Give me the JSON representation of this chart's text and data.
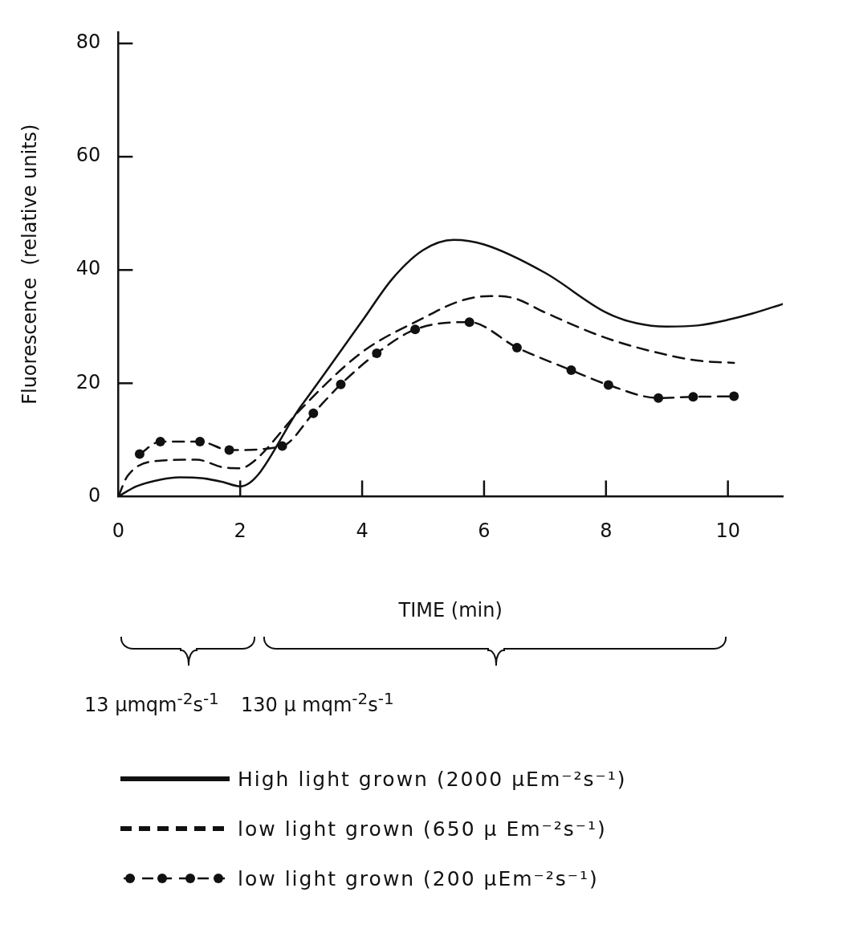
{
  "chart_data": {
    "type": "line",
    "xlabel": "TIME (min)",
    "ylabel": "Fluorescence  (relative units)",
    "xlim": [
      0,
      10.9
    ],
    "xticks": [
      0,
      2,
      4,
      6,
      8,
      10
    ],
    "ylim": [
      0,
      82
    ],
    "yticks": [
      0,
      20,
      40,
      60,
      80
    ],
    "grid": false,
    "legend": "bottom",
    "series": [
      {
        "name": "High light grown (2000 µEm⁻²s⁻¹)",
        "color": "#111111",
        "line_style": "solid",
        "marker": "none",
        "x": [
          0,
          0.3,
          0.7,
          1,
          1.4,
          1.7,
          2,
          3,
          4,
          4.5,
          5,
          5.5,
          6,
          7,
          8,
          8.5,
          9,
          9.5,
          10,
          10.4,
          10.9
        ],
        "values": [
          0,
          1.8,
          3,
          3.4,
          3.2,
          2.6,
          1.8,
          16,
          31,
          38.5,
          43.5,
          45.3,
          44.5,
          39.5,
          32.5,
          30.6,
          30,
          30.2,
          31.2,
          32.3,
          34
        ]
      },
      {
        "name": "low light grown (650 µ Em⁻²s⁻¹)",
        "color": "#111111",
        "line_style": "dashed",
        "marker": "none",
        "x": [
          0,
          0.15,
          0.66,
          1.28,
          1.75,
          2,
          2.2,
          3,
          4,
          5,
          5.6,
          6.1,
          6.5,
          7,
          8,
          9,
          9.5,
          10.1
        ],
        "values": [
          0,
          3.6,
          6.3,
          6.5,
          5.1,
          5,
          6,
          15.5,
          25.5,
          31.5,
          34.5,
          35.4,
          35,
          32.5,
          28,
          25,
          24,
          23.6
        ]
      },
      {
        "name": "low light grown (200 µEm⁻²s⁻¹)",
        "color": "#111111",
        "line_style": "dashed",
        "marker": "circle",
        "x": [
          0.35,
          0.69,
          1.34,
          1.82,
          2.69,
          3.2,
          3.65,
          4.24,
          4.87,
          5.76,
          6.54,
          7.43,
          8.04,
          8.86,
          9.43,
          10.1
        ],
        "values": [
          7.5,
          9.7,
          9.7,
          8.2,
          8.9,
          14.7,
          19.8,
          25.3,
          29.5,
          30.8,
          26.3,
          22.3,
          19.7,
          17.4,
          17.6,
          17.7
        ]
      }
    ],
    "annotations": [
      "13 µmqm$^{-2}$s$^{-1}$",
      "130 µ mqm$^{-2}$s$^{-1}$"
    ]
  }
}
